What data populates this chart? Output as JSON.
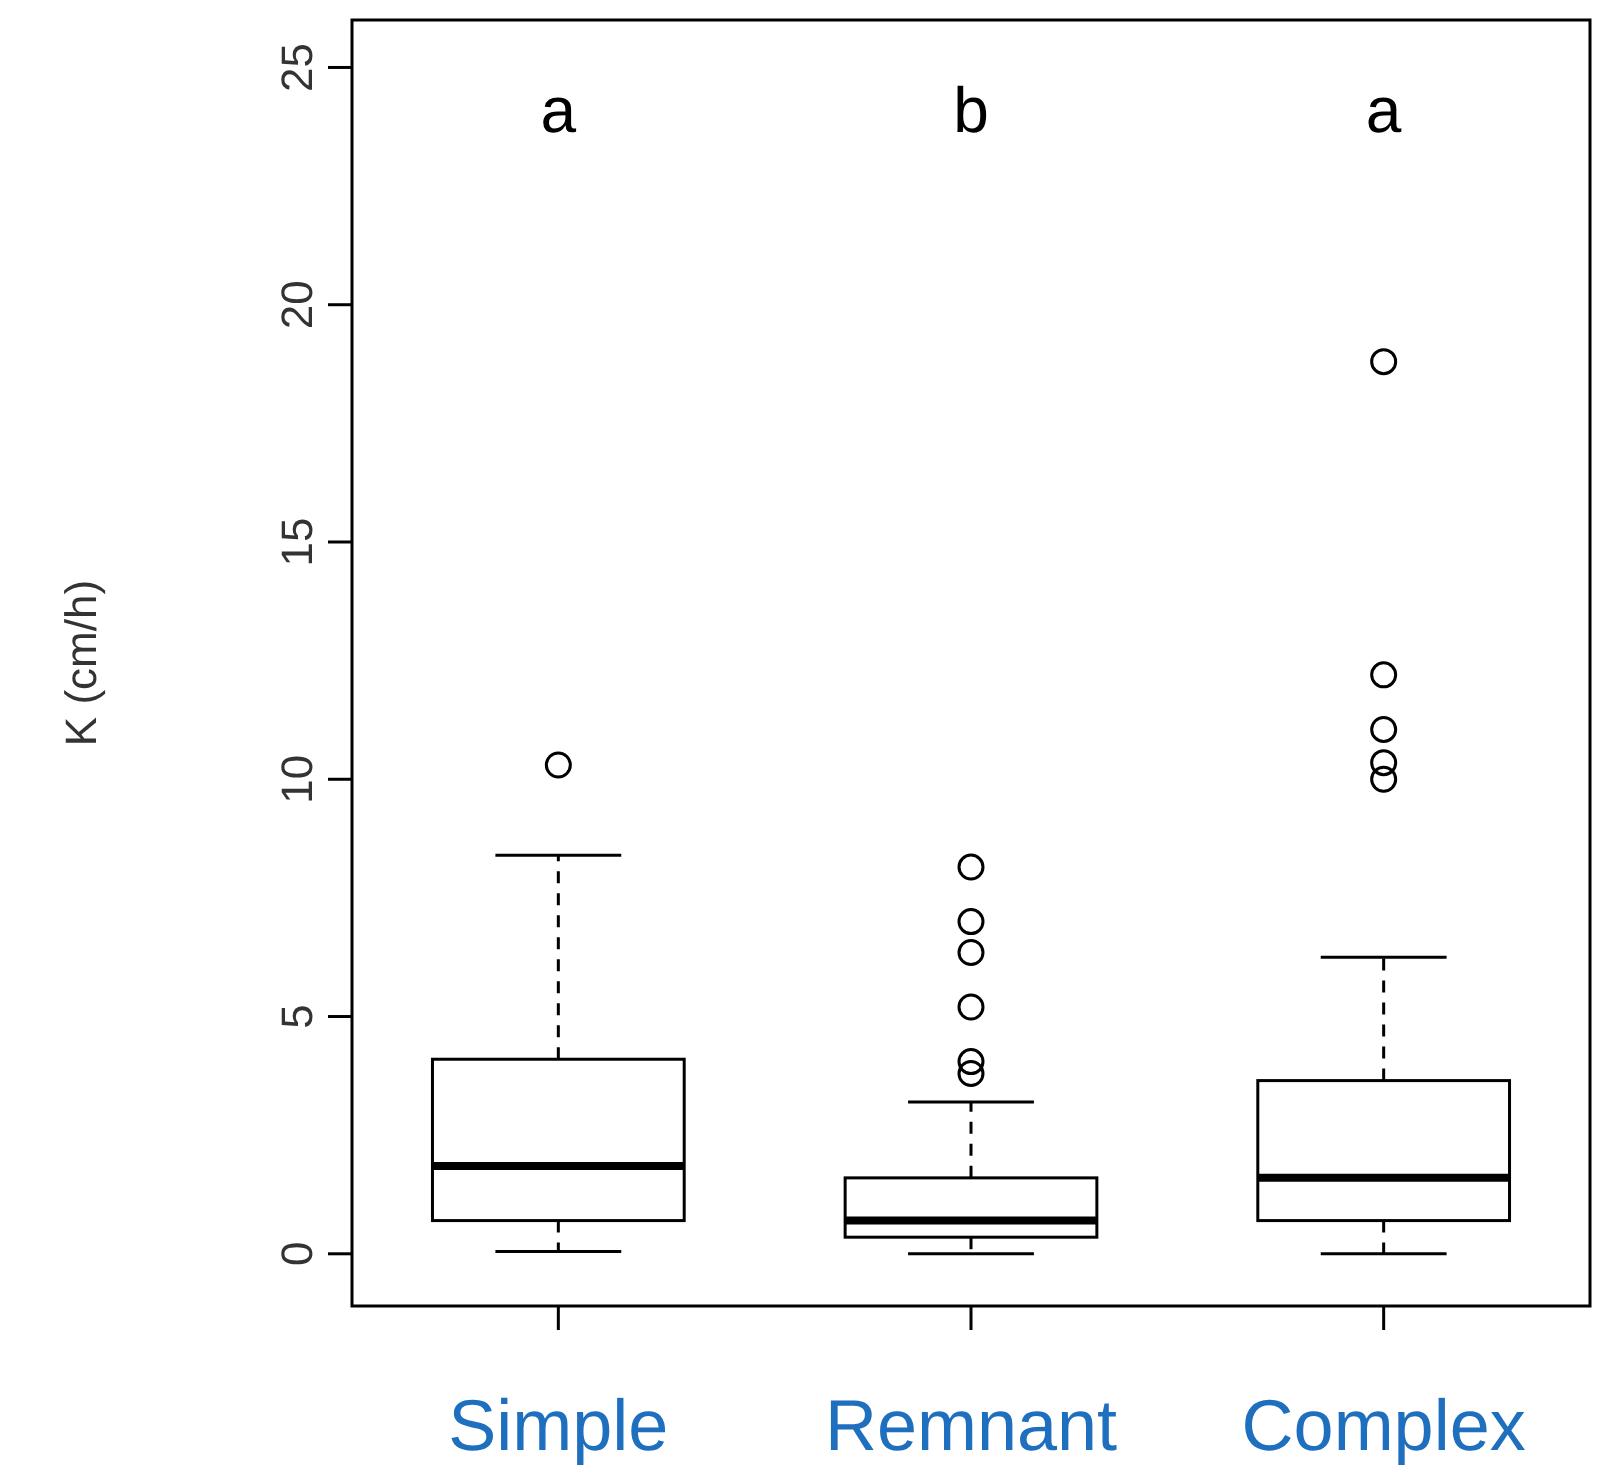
{
  "chart_data": {
    "type": "box",
    "ylabel": "K (cm/h)",
    "categories": [
      "Simple",
      "Remnant",
      "Complex"
    ],
    "boxes": [
      {
        "low": 0.05,
        "q1": 0.7,
        "median": 1.85,
        "q3": 4.1,
        "high": 8.4,
        "outliers": [
          10.3
        ]
      },
      {
        "low": 0,
        "q1": 0.35,
        "median": 0.7,
        "q3": 1.6,
        "high": 3.2,
        "outliers": [
          8.15,
          7.0,
          6.35,
          5.2,
          4.05,
          3.8
        ]
      },
      {
        "low": 0,
        "q1": 0.7,
        "median": 1.6,
        "q3": 3.65,
        "high": 6.25,
        "outliers": [
          18.8,
          12.2,
          11.05,
          10.35,
          10.0
        ]
      }
    ],
    "color": "#000000",
    "ylim": [
      -1.1,
      26
    ],
    "yticks": [
      0,
      5,
      10,
      15,
      20,
      25
    ],
    "grid": false,
    "annotations": [
      "a",
      "b",
      "a"
    ]
  }
}
